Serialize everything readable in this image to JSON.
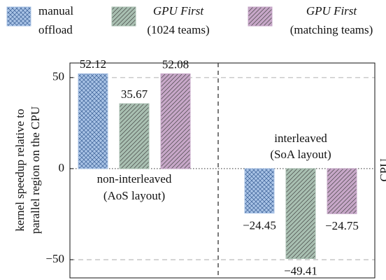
{
  "chart_data": {
    "type": "bar",
    "y_label": [
      "kernel speedup relative to",
      "parallel region on the CPU"
    ],
    "y2_label": "CPU",
    "categories": [
      [
        "non-interleaved",
        "(AoS layout)"
      ],
      [
        "interleaved",
        "(SoA layout)"
      ]
    ],
    "series": [
      {
        "name": [
          "manual",
          "offload"
        ],
        "color": "#a9c3e6",
        "pattern": "crosshatch",
        "values": [
          52.12,
          -24.45
        ],
        "value_labels": [
          "52.12",
          "−24.45"
        ]
      },
      {
        "name": [
          "GPU First",
          "(1024 teams)"
        ],
        "color": "#a8bfb1",
        "pattern": "diagonal",
        "values": [
          35.67,
          -49.41
        ],
        "value_labels": [
          "35.67",
          "−49.41"
        ]
      },
      {
        "name": [
          "GPU First",
          "(matching teams)"
        ],
        "color": "#c7a7c8",
        "pattern": "diagonal",
        "values": [
          52.08,
          -24.75
        ],
        "value_labels": [
          "52.08",
          "−24.75"
        ]
      }
    ],
    "ylim": [
      -60,
      58
    ],
    "yticks": [
      {
        "value": -50,
        "label": "−50"
      },
      0,
      50
    ],
    "grid": true
  }
}
